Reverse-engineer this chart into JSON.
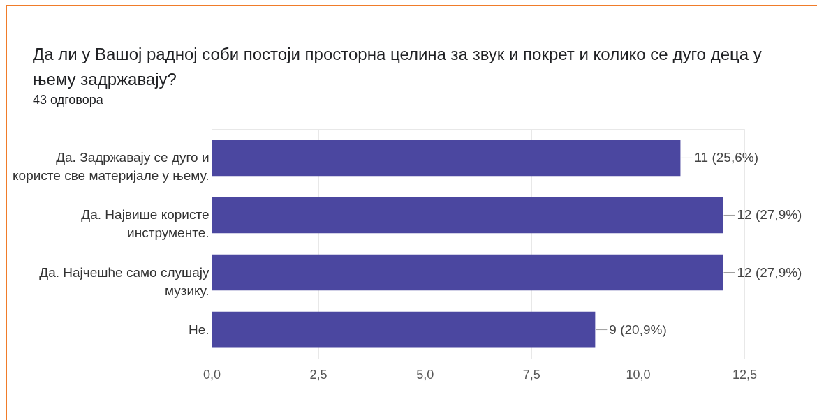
{
  "chart_data": {
    "type": "bar",
    "orientation": "horizontal",
    "title": "Да ли у Вашој радној соби постоји просторна целина за звук и покрет и колико се дуго деца у њему задржавају?",
    "subtitle": "43 одговора",
    "categories": [
      "Да. Задржавају се дуго и користе све материјале у њему.",
      "Да. Највише користе инструменте.",
      "Да. Најчешће само слушају музику.",
      "Не."
    ],
    "values": [
      11,
      12,
      12,
      9
    ],
    "color": "#4b47a0",
    "value_labels": [
      "11 (25,6%)",
      "12 (27,9%)",
      "12 (27,9%)",
      "9 (20,9%)"
    ],
    "xlim": [
      0,
      12.5
    ],
    "xticks": [
      {
        "value": 0,
        "label": "0,0"
      },
      {
        "value": 2.5,
        "label": "2,5"
      },
      {
        "value": 5,
        "label": "5,0"
      },
      {
        "value": 7.5,
        "label": "7,5"
      },
      {
        "value": 10,
        "label": "10,0"
      },
      {
        "value": 12.5,
        "label": "12,5"
      }
    ],
    "grid": "x"
  }
}
